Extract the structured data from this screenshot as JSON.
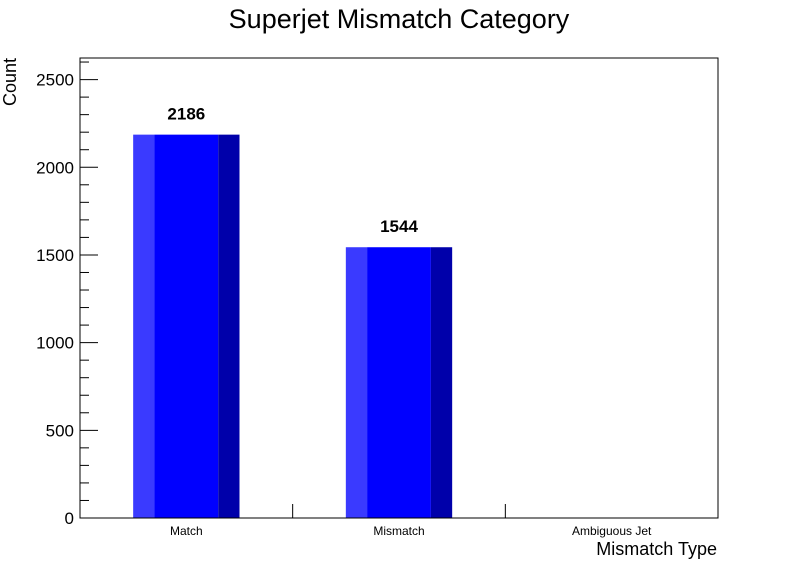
{
  "chart_data": {
    "type": "bar",
    "title": "Superjet Mismatch Category",
    "xlabel": "Mismatch Type",
    "ylabel": "Count",
    "categories": [
      "Match",
      "Mismatch",
      "Ambiguous Jet"
    ],
    "values": [
      2186,
      1544,
      0
    ],
    "data_labels": [
      "2186",
      "1544",
      ""
    ],
    "ylim": [
      0,
      2623
    ],
    "yticks": [
      0,
      500,
      1000,
      1500,
      2000,
      2500
    ],
    "ytick_labels": [
      "0",
      "500",
      "1000",
      "1500",
      "2000",
      "2500"
    ],
    "grid": false,
    "legend": "none",
    "bar_colors": {
      "light": "#3a3aff",
      "main": "#0000ff",
      "dark": "#0000aa"
    },
    "frame_color": "#000000"
  }
}
